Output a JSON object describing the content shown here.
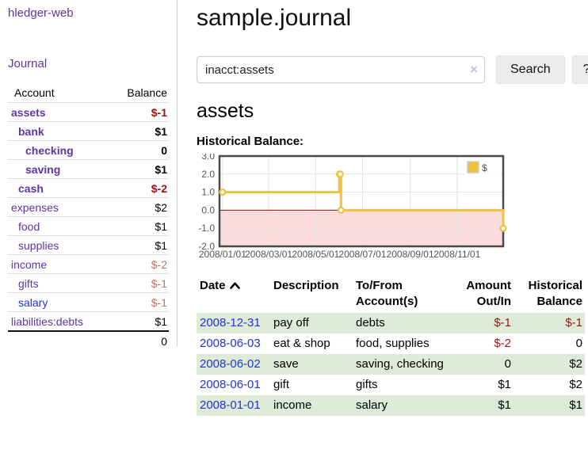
{
  "app": {
    "brand": "hledger-web",
    "nav_journal": "Journal"
  },
  "colors": {
    "link_purple": "#5e35a1",
    "link_blue": "#2233dd",
    "negative_strong": "#a31212",
    "negative_soft": "#c17470",
    "row_stripe_green": "#deebd8",
    "chart_line_gold": "#edc240",
    "chart_negative_region_pink": "#fcdcdc",
    "chart_zero_line_red": "#8f0e0e",
    "button_gray": "#ececec"
  },
  "sidebar": {
    "headers": {
      "account": "Account",
      "balance": "Balance"
    },
    "accounts": [
      {
        "name": "assets",
        "depth": 0,
        "balance": "$-1",
        "bold": true
      },
      {
        "name": "bank",
        "depth": 1,
        "balance": "$1",
        "bold": true
      },
      {
        "name": "checking",
        "depth": 2,
        "balance": "0",
        "bold": true
      },
      {
        "name": "saving",
        "depth": 2,
        "balance": "$1",
        "bold": true
      },
      {
        "name": "cash",
        "depth": 1,
        "balance": "$-2",
        "bold": true
      },
      {
        "name": "expenses",
        "depth": 0,
        "balance": "$2",
        "bold": false
      },
      {
        "name": "food",
        "depth": 1,
        "balance": "$1",
        "bold": false
      },
      {
        "name": "supplies",
        "depth": 1,
        "balance": "$1",
        "bold": false
      },
      {
        "name": "income",
        "depth": 0,
        "balance": "$-2",
        "bold": false
      },
      {
        "name": "gifts",
        "depth": 1,
        "balance": "$-1",
        "bold": false
      },
      {
        "name": "salary",
        "depth": 1,
        "balance": "$-1",
        "bold": false,
        "blue_link": true
      },
      {
        "name": "liabilities:debts",
        "depth": 0,
        "balance": "$1",
        "bold": false
      }
    ],
    "total": "0"
  },
  "header": {
    "title": "sample.journal"
  },
  "search": {
    "value": "inacct:assets",
    "clear_icon": "×",
    "button_label": "Search",
    "help_label": "?"
  },
  "account_page": {
    "heading": "assets",
    "chart_label": "Historical Balance:"
  },
  "chart_data": {
    "type": "line",
    "step": true,
    "title": "Historical Balance",
    "legend": [
      {
        "label": "$",
        "color": "#edc240"
      }
    ],
    "legend_position": "top-right",
    "series": [
      {
        "name": "$",
        "points": [
          [
            "2008-01-01",
            1.0
          ],
          [
            "2008-06-01",
            2.0
          ],
          [
            "2008-06-02",
            2.0
          ],
          [
            "2008-06-03",
            0.0
          ],
          [
            "2008-12-31",
            -1.0
          ]
        ]
      }
    ],
    "ylim": [
      -2.0,
      3.0
    ],
    "ytick_values": [
      3.0,
      2.0,
      1.0,
      0.0,
      -1.0,
      -2.0
    ],
    "ytick_labels": [
      "3.0",
      "2.0",
      "1.0",
      "0.0",
      "-1.0",
      "-2.0"
    ],
    "xticks": [
      {
        "date": "2008-01-01",
        "label": "2008/01/01"
      },
      {
        "date": "2008-03-01",
        "label": "2008/03/01"
      },
      {
        "date": "2008-05-01",
        "label": "2008/05/01"
      },
      {
        "date": "2008-07-01",
        "label": "2008/07/01"
      },
      {
        "date": "2008-09-01",
        "label": "2008/09/01"
      },
      {
        "date": "2008-11-01",
        "label": "2008/11/01"
      }
    ],
    "xlim": [
      "2007-12-28",
      "2008-12-31"
    ],
    "grid": true,
    "negative_region_shaded": true
  },
  "register": {
    "headers": {
      "date": "Date",
      "description": "Description",
      "tofrom": "To/From Account(s)",
      "amount": "Amount Out/In",
      "balance": "Historical Balance"
    },
    "sort": {
      "column": "date",
      "direction": "asc"
    },
    "rows": [
      {
        "date": "2008-12-31",
        "description": "pay off",
        "accounts": "debts",
        "amount": "$-1",
        "balance": "$-1"
      },
      {
        "date": "2008-06-03",
        "description": "eat & shop",
        "accounts": "food, supplies",
        "amount": "$-2",
        "balance": "0"
      },
      {
        "date": "2008-06-02",
        "description": "save",
        "accounts": "saving, checking",
        "amount": "0",
        "balance": "$2"
      },
      {
        "date": "2008-06-01",
        "description": "gift",
        "accounts": "gifts",
        "amount": "$1",
        "balance": "$2"
      },
      {
        "date": "2008-01-01",
        "description": "income",
        "accounts": "salary",
        "amount": "$1",
        "balance": "$1"
      }
    ]
  }
}
